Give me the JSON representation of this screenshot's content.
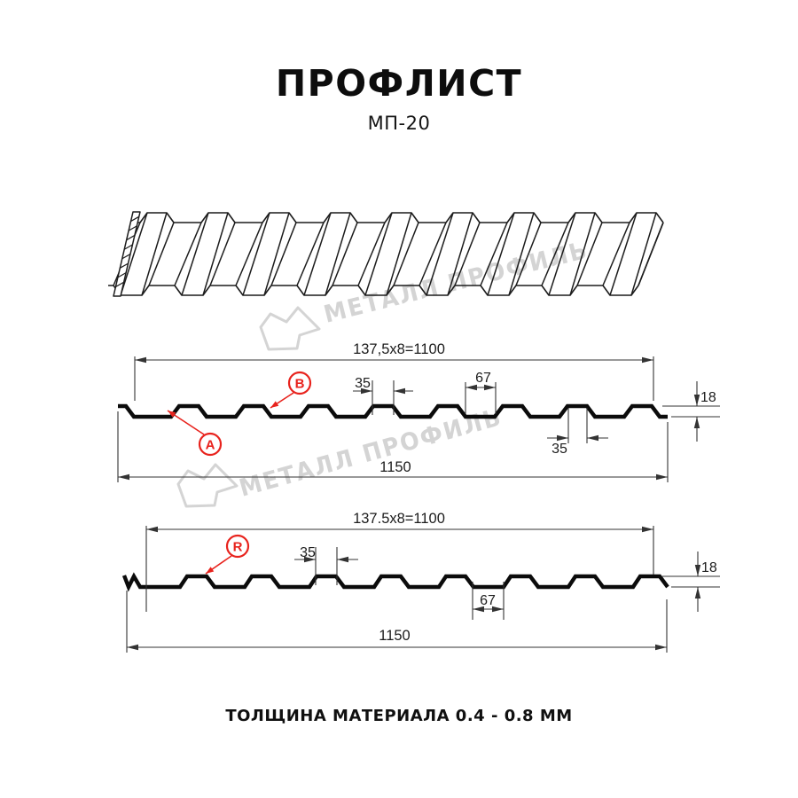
{
  "title": "ПРОФЛИСТ",
  "subtitle": "МП-20",
  "footer": "ТОЛЩИНА МАТЕРИАЛА 0.4 - 0.8 ММ",
  "watermark": {
    "text": "МЕТАЛЛ ПРОФИЛЬ"
  },
  "colors": {
    "accent_red": "#e8231d",
    "line_black": "#1c1c1c",
    "watermark_gray": "#d4d4d4"
  },
  "section1": {
    "width_formula": "137,5x8=1100",
    "dim_rib_width_top": "35",
    "dim_valley_width": "67",
    "dim_height": "18",
    "dim_rib_width_bottom": "35",
    "dim_total_width": "1150",
    "callout_a": "A",
    "callout_b": "B"
  },
  "section2": {
    "width_formula": "137.5x8=1100",
    "dim_rib_width": "35",
    "dim_valley_width": "67",
    "dim_height": "18",
    "dim_total_width": "1150",
    "callout_r": "R"
  }
}
